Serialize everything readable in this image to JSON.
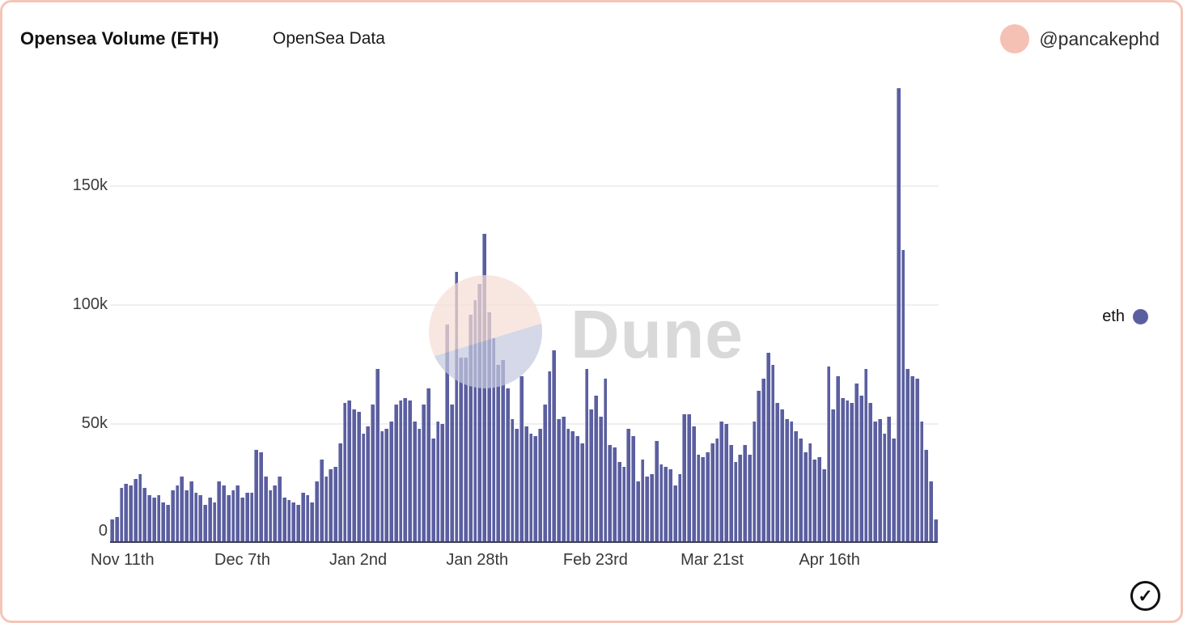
{
  "header": {
    "title": "Opensea Volume (ETH)",
    "subtitle": "OpenSea Data",
    "author": "@pancakephd",
    "avatar_color": "#f4c1b4"
  },
  "legend": {
    "label": "eth",
    "dot_color": "#5b5fa0"
  },
  "watermark": {
    "text": "Dune"
  },
  "footer": {
    "check_glyph": "✓"
  },
  "chart_data": {
    "type": "bar",
    "title": "Opensea Volume (ETH)",
    "series_name": "eth",
    "unit_suffix": "k",
    "bar_color": "#5b5fa0",
    "grid": true,
    "legend_position": "right",
    "ylim_k": [
      0,
      191
    ],
    "y_ticks": [
      {
        "label": "0",
        "value_k": 0
      },
      {
        "label": "50k",
        "value_k": 50
      },
      {
        "label": "100k",
        "value_k": 100
      },
      {
        "label": "150k",
        "value_k": 150
      }
    ],
    "x_ticks": [
      {
        "label": "Nov 11th",
        "pos_pct": 1.5
      },
      {
        "label": "Dec 7th",
        "pos_pct": 16.0
      },
      {
        "label": "Jan 2nd",
        "pos_pct": 30.0
      },
      {
        "label": "Jan 28th",
        "pos_pct": 44.4
      },
      {
        "label": "Feb 23rd",
        "pos_pct": 58.7
      },
      {
        "label": "Mar 21st",
        "pos_pct": 72.8
      },
      {
        "label": "Apr 16th",
        "pos_pct": 87.0
      }
    ],
    "values_k": [
      10,
      11,
      23,
      25,
      24,
      27,
      29,
      23,
      20,
      19,
      20,
      17,
      16,
      22,
      24,
      28,
      22,
      26,
      21,
      20,
      16,
      19,
      17,
      26,
      24,
      20,
      22,
      24,
      19,
      21,
      21,
      39,
      38,
      28,
      22,
      24,
      28,
      19,
      18,
      17,
      16,
      21,
      20,
      17,
      26,
      35,
      28,
      31,
      32,
      42,
      59,
      60,
      56,
      55,
      46,
      49,
      58,
      73,
      47,
      48,
      51,
      58,
      60,
      61,
      60,
      51,
      48,
      58,
      65,
      44,
      51,
      50,
      92,
      58,
      114,
      78,
      78,
      96,
      102,
      109,
      130,
      97,
      86,
      75,
      77,
      65,
      52,
      48,
      70,
      49,
      46,
      45,
      48,
      58,
      72,
      81,
      52,
      53,
      48,
      47,
      45,
      42,
      73,
      56,
      62,
      53,
      69,
      41,
      40,
      34,
      32,
      48,
      45,
      26,
      35,
      28,
      29,
      43,
      33,
      32,
      31,
      24,
      29,
      54,
      54,
      49,
      37,
      36,
      38,
      42,
      44,
      51,
      50,
      41,
      34,
      37,
      41,
      37,
      51,
      64,
      69,
      80,
      75,
      59,
      56,
      52,
      51,
      47,
      44,
      38,
      42,
      35,
      36,
      31,
      74,
      56,
      70,
      61,
      60,
      59,
      67,
      62,
      73,
      59,
      51,
      52,
      46,
      53,
      44,
      191,
      123,
      73,
      70,
      69,
      51,
      39,
      26,
      10
    ]
  }
}
